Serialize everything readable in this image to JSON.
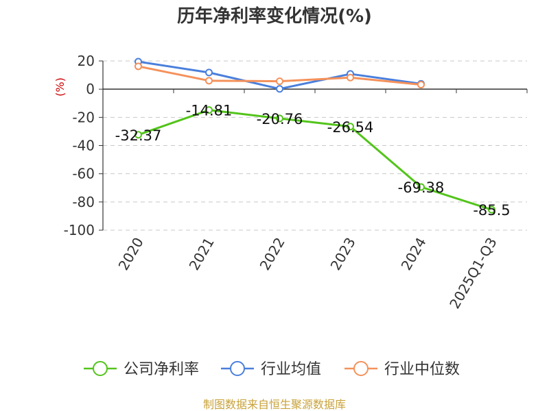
{
  "chart_data": {
    "type": "line",
    "title": "历年净利率变化情况(%)",
    "ylabel": "(%)",
    "categories": [
      "2020",
      "2021",
      "2022",
      "2023",
      "2024",
      "2025Q1-Q3"
    ],
    "y_ticks": [
      "20",
      "0",
      "-20",
      "-40",
      "-60",
      "-80",
      "-100"
    ],
    "ylim": [
      -100,
      20
    ],
    "grid": true,
    "legend_position": "bottom",
    "series": [
      {
        "name": "公司净利率",
        "color": "#52c41a",
        "values": [
          -32.37,
          -14.81,
          -20.76,
          -26.54,
          -69.38,
          -85.5
        ],
        "labels": [
          "-32.37",
          "-14.81",
          "-20.76",
          "-26.54",
          "-69.38",
          "-85.5"
        ]
      },
      {
        "name": "行业均值",
        "color": "#4a7fdc",
        "values": [
          19.5,
          11.8,
          0.2,
          10.8,
          3.8,
          null
        ]
      },
      {
        "name": "行业中位数",
        "color": "#f5915a",
        "values": [
          16.2,
          6.0,
          5.6,
          8.2,
          3.2,
          null
        ]
      }
    ]
  },
  "footer": "制图数据来自恒生聚源数据库"
}
